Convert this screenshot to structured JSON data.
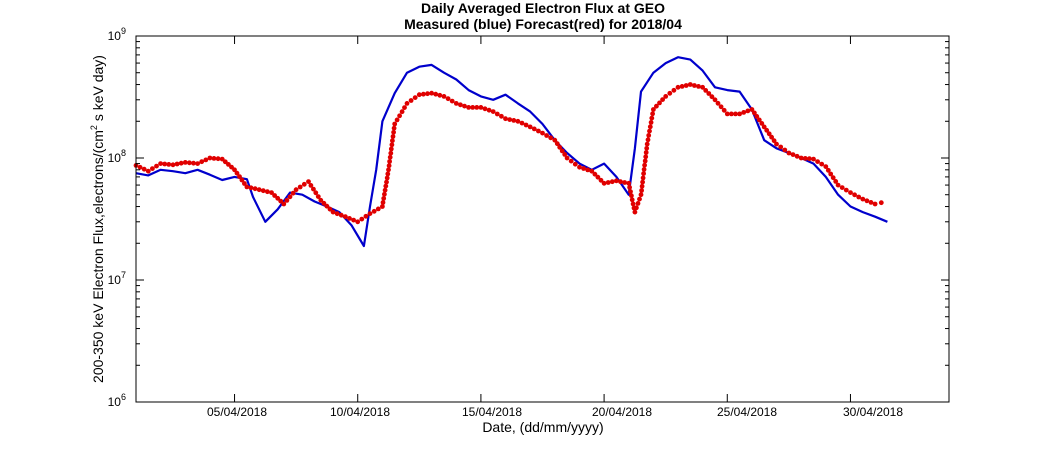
{
  "chart_data": {
    "type": "line",
    "title": "Daily Averaged Electron Flux at GEO",
    "subtitle": "Measured (blue) Forecast(red) for 2018/04",
    "xlabel": "Date, (dd/mm/yyyy)",
    "ylabel": "200-350 keV Electron Flux,electrons/(cm² s keV day)",
    "yscale": "log",
    "ylim": [
      1000000,
      1000000000
    ],
    "xlim": [
      "2018-04-01",
      "2018-05-04"
    ],
    "x_ticks": [
      "05/04/2018",
      "10/04/2018",
      "15/04/2018",
      "20/04/2018",
      "25/04/2018",
      "30/04/2018"
    ],
    "y_ticks": [
      {
        "base": "10",
        "exp": "6"
      },
      {
        "base": "10",
        "exp": "7"
      },
      {
        "base": "10",
        "exp": "8"
      },
      {
        "base": "10",
        "exp": "9"
      }
    ],
    "grid": false,
    "series": [
      {
        "color": "#0000cc",
        "style": "line",
        "points": [
          [
            "2018-04-01 00:00",
            75000000
          ],
          [
            "2018-04-01 12:00",
            72000000
          ],
          [
            "2018-04-02 00:00",
            80000000
          ],
          [
            "2018-04-02 12:00",
            78000000
          ],
          [
            "2018-04-03 00:00",
            75000000
          ],
          [
            "2018-04-03 12:00",
            80000000
          ],
          [
            "2018-04-04 00:00",
            73000000
          ],
          [
            "2018-04-04 12:00",
            66000000
          ],
          [
            "2018-04-05 00:00",
            70000000
          ],
          [
            "2018-04-05 12:00",
            67000000
          ],
          [
            "2018-04-05 18:00",
            48000000
          ],
          [
            "2018-04-06 06:00",
            30000000
          ],
          [
            "2018-04-06 18:00",
            38000000
          ],
          [
            "2018-04-07 06:00",
            52000000
          ],
          [
            "2018-04-07 18:00",
            50000000
          ],
          [
            "2018-04-08 06:00",
            44000000
          ],
          [
            "2018-04-08 18:00",
            40000000
          ],
          [
            "2018-04-09 06:00",
            36000000
          ],
          [
            "2018-04-09 18:00",
            28000000
          ],
          [
            "2018-04-10 06:00",
            19000000
          ],
          [
            "2018-04-10 12:00",
            40000000
          ],
          [
            "2018-04-10 18:00",
            80000000
          ],
          [
            "2018-04-11 00:00",
            200000000
          ],
          [
            "2018-04-11 12:00",
            340000000
          ],
          [
            "2018-04-12 00:00",
            500000000
          ],
          [
            "2018-04-12 12:00",
            560000000
          ],
          [
            "2018-04-13 00:00",
            580000000
          ],
          [
            "2018-04-13 12:00",
            500000000
          ],
          [
            "2018-04-14 00:00",
            440000000
          ],
          [
            "2018-04-14 12:00",
            360000000
          ],
          [
            "2018-04-15 00:00",
            320000000
          ],
          [
            "2018-04-15 12:00",
            300000000
          ],
          [
            "2018-04-16 00:00",
            330000000
          ],
          [
            "2018-04-16 12:00",
            280000000
          ],
          [
            "2018-04-17 00:00",
            240000000
          ],
          [
            "2018-04-17 12:00",
            190000000
          ],
          [
            "2018-04-18 00:00",
            140000000
          ],
          [
            "2018-04-18 12:00",
            110000000
          ],
          [
            "2018-04-19 00:00",
            90000000
          ],
          [
            "2018-04-19 12:00",
            80000000
          ],
          [
            "2018-04-20 00:00",
            90000000
          ],
          [
            "2018-04-20 12:00",
            70000000
          ],
          [
            "2018-04-21 00:00",
            50000000
          ],
          [
            "2018-04-21 06:00",
            120000000
          ],
          [
            "2018-04-21 12:00",
            350000000
          ],
          [
            "2018-04-22 00:00",
            500000000
          ],
          [
            "2018-04-22 12:00",
            600000000
          ],
          [
            "2018-04-23 00:00",
            670000000
          ],
          [
            "2018-04-23 12:00",
            640000000
          ],
          [
            "2018-04-24 00:00",
            520000000
          ],
          [
            "2018-04-24 12:00",
            380000000
          ],
          [
            "2018-04-25 00:00",
            360000000
          ],
          [
            "2018-04-25 12:00",
            350000000
          ],
          [
            "2018-04-26 00:00",
            250000000
          ],
          [
            "2018-04-26 12:00",
            140000000
          ],
          [
            "2018-04-27 00:00",
            120000000
          ],
          [
            "2018-04-27 12:00",
            110000000
          ],
          [
            "2018-04-28 00:00",
            100000000
          ],
          [
            "2018-04-28 12:00",
            90000000
          ],
          [
            "2018-04-29 00:00",
            70000000
          ],
          [
            "2018-04-29 12:00",
            50000000
          ],
          [
            "2018-04-30 00:00",
            40000000
          ],
          [
            "2018-04-30 12:00",
            36000000
          ],
          [
            "2018-05-01 00:00",
            33000000
          ],
          [
            "2018-05-01 12:00",
            30000000
          ]
        ]
      },
      {
        "color": "#e00000",
        "style": "markers",
        "points": [
          [
            "2018-04-01 00:00",
            87000000
          ],
          [
            "2018-04-01 12:00",
            78000000
          ],
          [
            "2018-04-02 00:00",
            90000000
          ],
          [
            "2018-04-02 12:00",
            88000000
          ],
          [
            "2018-04-03 00:00",
            92000000
          ],
          [
            "2018-04-03 12:00",
            90000000
          ],
          [
            "2018-04-04 00:00",
            100000000
          ],
          [
            "2018-04-04 12:00",
            98000000
          ],
          [
            "2018-04-05 00:00",
            80000000
          ],
          [
            "2018-04-05 12:00",
            58000000
          ],
          [
            "2018-04-06 00:00",
            55000000
          ],
          [
            "2018-04-06 12:00",
            52000000
          ],
          [
            "2018-04-07 00:00",
            42000000
          ],
          [
            "2018-04-07 12:00",
            55000000
          ],
          [
            "2018-04-08 00:00",
            64000000
          ],
          [
            "2018-04-08 12:00",
            45000000
          ],
          [
            "2018-04-09 00:00",
            36000000
          ],
          [
            "2018-04-09 12:00",
            33000000
          ],
          [
            "2018-04-10 00:00",
            30000000
          ],
          [
            "2018-04-10 12:00",
            35000000
          ],
          [
            "2018-04-11 00:00",
            40000000
          ],
          [
            "2018-04-11 06:00",
            80000000
          ],
          [
            "2018-04-11 12:00",
            190000000
          ],
          [
            "2018-04-12 00:00",
            280000000
          ],
          [
            "2018-04-12 12:00",
            330000000
          ],
          [
            "2018-04-13 00:00",
            340000000
          ],
          [
            "2018-04-13 12:00",
            320000000
          ],
          [
            "2018-04-14 00:00",
            280000000
          ],
          [
            "2018-04-14 12:00",
            260000000
          ],
          [
            "2018-04-15 00:00",
            260000000
          ],
          [
            "2018-04-15 12:00",
            240000000
          ],
          [
            "2018-04-16 00:00",
            210000000
          ],
          [
            "2018-04-16 12:00",
            200000000
          ],
          [
            "2018-04-17 00:00",
            180000000
          ],
          [
            "2018-04-17 12:00",
            160000000
          ],
          [
            "2018-04-18 00:00",
            140000000
          ],
          [
            "2018-04-18 12:00",
            100000000
          ],
          [
            "2018-04-19 00:00",
            84000000
          ],
          [
            "2018-04-19 12:00",
            78000000
          ],
          [
            "2018-04-20 00:00",
            62000000
          ],
          [
            "2018-04-20 12:00",
            65000000
          ],
          [
            "2018-04-21 00:00",
            62000000
          ],
          [
            "2018-04-21 06:00",
            36000000
          ],
          [
            "2018-04-21 12:00",
            50000000
          ],
          [
            "2018-04-21 18:00",
            130000000
          ],
          [
            "2018-04-22 00:00",
            250000000
          ],
          [
            "2018-04-22 12:00",
            320000000
          ],
          [
            "2018-04-23 00:00",
            380000000
          ],
          [
            "2018-04-23 12:00",
            400000000
          ],
          [
            "2018-04-24 00:00",
            380000000
          ],
          [
            "2018-04-24 12:00",
            300000000
          ],
          [
            "2018-04-25 00:00",
            230000000
          ],
          [
            "2018-04-25 12:00",
            230000000
          ],
          [
            "2018-04-26 00:00",
            250000000
          ],
          [
            "2018-04-26 12:00",
            180000000
          ],
          [
            "2018-04-27 00:00",
            130000000
          ],
          [
            "2018-04-27 12:00",
            110000000
          ],
          [
            "2018-04-28 00:00",
            100000000
          ],
          [
            "2018-04-28 12:00",
            98000000
          ],
          [
            "2018-04-29 00:00",
            85000000
          ],
          [
            "2018-04-29 12:00",
            60000000
          ],
          [
            "2018-04-30 00:00",
            52000000
          ],
          [
            "2018-04-30 12:00",
            46000000
          ],
          [
            "2018-05-01 00:00",
            42000000
          ],
          [
            "2018-05-01 06:00",
            43000000
          ]
        ]
      }
    ]
  }
}
